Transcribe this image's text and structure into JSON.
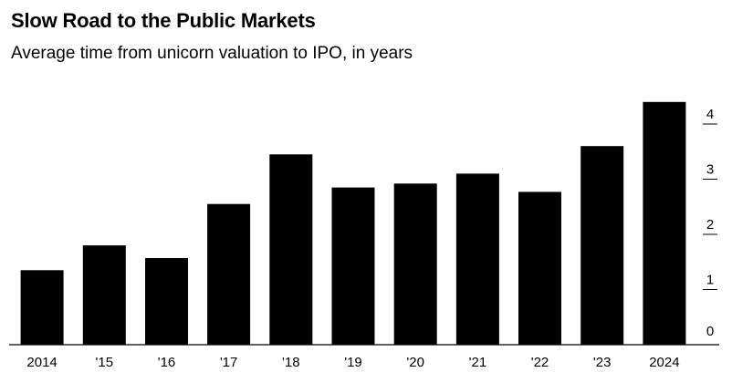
{
  "chart_data": {
    "type": "bar",
    "title": "Slow Road to the Public Markets",
    "subtitle": "Average time from unicorn valuation to IPO, in years",
    "categories": [
      "2014",
      "'15",
      "'16",
      "'17",
      "'18",
      "'19",
      "'20",
      "'21",
      "'22",
      "'23",
      "2024"
    ],
    "values": [
      1.35,
      1.8,
      1.57,
      2.55,
      3.45,
      2.85,
      2.92,
      3.1,
      2.77,
      3.6,
      4.4
    ],
    "yticks": [
      "0",
      "1",
      "2",
      "3",
      "4"
    ],
    "ylim": [
      0,
      4.5
    ],
    "y_axis_position": "right",
    "bar_color": "#000000",
    "grid": false
  }
}
